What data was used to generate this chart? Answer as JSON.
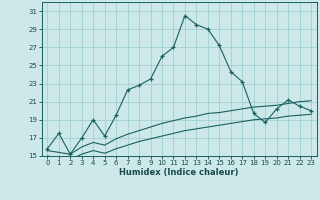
{
  "xlabel": "Humidex (Indice chaleur)",
  "bg_color": "#cce8e8",
  "grid_color": "#99cccc",
  "line_color": "#1a6060",
  "xlim": [
    -0.5,
    23.5
  ],
  "ylim": [
    15,
    32
  ],
  "yticks": [
    15,
    17,
    19,
    21,
    23,
    25,
    27,
    29,
    31
  ],
  "xticks": [
    0,
    1,
    2,
    3,
    4,
    5,
    6,
    7,
    8,
    9,
    10,
    11,
    12,
    13,
    14,
    15,
    16,
    17,
    18,
    19,
    20,
    21,
    22,
    23
  ],
  "series1_x": [
    0,
    1,
    2,
    3,
    4,
    5,
    6,
    7,
    8,
    9,
    10,
    11,
    12,
    13,
    14,
    15,
    16,
    17,
    18,
    19,
    20,
    21,
    22,
    23
  ],
  "series1_y": [
    15.8,
    17.5,
    15.2,
    17.0,
    19.0,
    17.2,
    19.5,
    22.3,
    22.8,
    23.5,
    26.0,
    27.0,
    30.5,
    29.5,
    29.0,
    27.2,
    24.3,
    23.2,
    19.7,
    18.7,
    20.2,
    21.2,
    20.5,
    20.0
  ],
  "series2_x": [
    0,
    1,
    2,
    3,
    4,
    5,
    6,
    7,
    8,
    9,
    10,
    11,
    12,
    13,
    14,
    15,
    16,
    17,
    18,
    19,
    20,
    21,
    22,
    23
  ],
  "series2_y": [
    15.6,
    15.4,
    15.2,
    16.0,
    16.5,
    16.2,
    16.9,
    17.4,
    17.8,
    18.2,
    18.6,
    18.9,
    19.2,
    19.4,
    19.7,
    19.8,
    20.0,
    20.2,
    20.4,
    20.5,
    20.6,
    20.8,
    21.0,
    21.1
  ],
  "series3_x": [
    0,
    1,
    2,
    3,
    4,
    5,
    6,
    7,
    8,
    9,
    10,
    11,
    12,
    13,
    14,
    15,
    16,
    17,
    18,
    19,
    20,
    21,
    22,
    23
  ],
  "series3_y": [
    15.0,
    14.8,
    14.6,
    15.2,
    15.6,
    15.3,
    15.8,
    16.2,
    16.6,
    16.9,
    17.2,
    17.5,
    17.8,
    18.0,
    18.2,
    18.4,
    18.6,
    18.8,
    19.0,
    19.1,
    19.2,
    19.4,
    19.5,
    19.6
  ]
}
